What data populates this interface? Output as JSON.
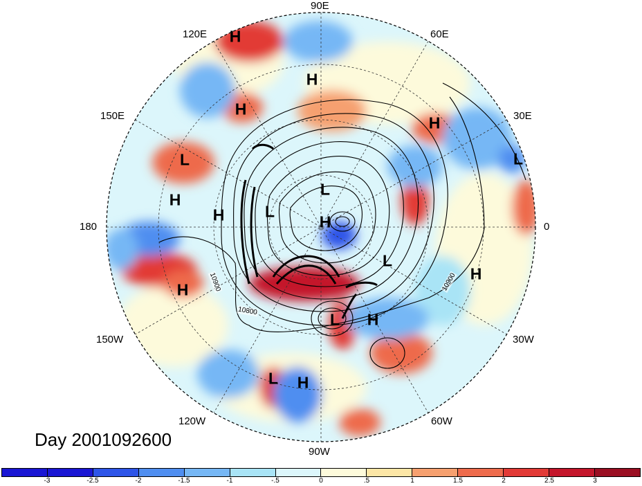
{
  "title": "Day 2001092600",
  "longitude_labels": [
    {
      "text": "90E",
      "id": "lon-90e"
    },
    {
      "text": "60E",
      "id": "lon-60e"
    },
    {
      "text": "120E",
      "id": "lon-120e"
    },
    {
      "text": "30E",
      "id": "lon-30e"
    },
    {
      "text": "150E",
      "id": "lon-150e"
    },
    {
      "text": "180",
      "id": "lon-180"
    },
    {
      "text": "0",
      "id": "lon-0"
    },
    {
      "text": "150W",
      "id": "lon-150w"
    },
    {
      "text": "30W",
      "id": "lon-30w"
    },
    {
      "text": "120W",
      "id": "lon-120w"
    },
    {
      "text": "60W",
      "id": "lon-60w"
    },
    {
      "text": "90W",
      "id": "lon-90w"
    }
  ],
  "pressure_centers": [
    "H",
    "H",
    "H",
    "H",
    "L",
    "H",
    "H",
    "L",
    "L",
    "H",
    "L",
    "H",
    "L",
    "H",
    "H",
    "L",
    "L",
    "H"
  ],
  "contour_labels": [
    "10900",
    "10800",
    "10900"
  ],
  "colorbar": {
    "colors": [
      "#1a16d4",
      "#2e55e8",
      "#4f8ef0",
      "#76b7f5",
      "#a9e4f6",
      "#dcf6fb",
      "#fdfadb",
      "#fce6a6",
      "#f6a06f",
      "#ee6b4c",
      "#e23a36",
      "#c4162b",
      "#9a0e22"
    ],
    "ticks": [
      "-3",
      "-2.5",
      "-2",
      "-1.5",
      "-1",
      "-.5",
      "0",
      ".5",
      "1",
      "1.5",
      "2",
      "2.5",
      "3"
    ]
  }
}
